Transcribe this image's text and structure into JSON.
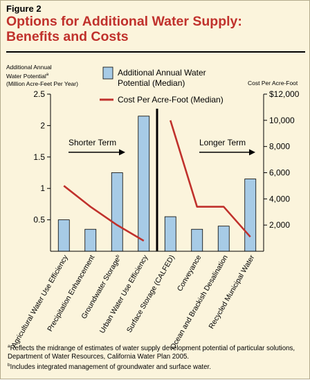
{
  "figure_label": "Figure 2",
  "title_line1": "Options for Additional Water Supply:",
  "title_line2": "Benefits and Costs",
  "footnotes": [
    {
      "mark": "a",
      "text": "Reflects the midrange of estimates of water supply development potential of particular solutions, Department of Water Resources, California Water Plan 2005."
    },
    {
      "mark": "b",
      "text": "Includes integrated management of groundwater and surface water."
    }
  ],
  "chart_data": {
    "type": "bar",
    "categories": [
      "Agricultural Water Use Efficiency",
      "Precipitation Enhancement",
      "Groundwater Storage",
      "Urban Water Use Efficiency",
      "Surface Storage (CALFED)",
      "Conveyance",
      "Ocean and Brackish Desalination",
      "Recycled Municipal Water"
    ],
    "category_marks": [
      "",
      "",
      "b",
      "",
      "",
      "",
      "",
      ""
    ],
    "ylabel_left_lines": [
      "Additional Annual",
      "Water Potential",
      "(Million Acre-Feet Per Year)"
    ],
    "ylabel_left_mark": "a",
    "ylabel_right": "Cost Per Acre-Foot",
    "ylim_left": [
      0,
      2.5
    ],
    "yticks_left": [
      "0.5",
      "1",
      "1.5",
      "2",
      "2.5"
    ],
    "ylim_right": [
      0,
      12000
    ],
    "yticks_right": [
      "2,000",
      "4,000",
      "6,000",
      "8,000",
      "10,000",
      "$12,000"
    ],
    "series": [
      {
        "name": "Additional Annual Water Potential (Median)",
        "type": "bar",
        "axis": "left",
        "color": "#a7cbe6",
        "values": [
          0.5,
          0.35,
          1.25,
          2.15,
          0.55,
          0.35,
          0.4,
          1.15
        ]
      },
      {
        "name": "Cost Per Acre-Foot (Median)",
        "type": "line",
        "axis": "right",
        "color": "#c0312c",
        "segments": [
          {
            "categories": [
              0,
              1,
              2,
              3
            ],
            "values": [
              5000,
              3400,
              2000,
              800
            ]
          },
          {
            "categories": [
              4,
              5,
              6,
              7
            ],
            "values": [
              10000,
              3400,
              3400,
              1100
            ]
          }
        ]
      }
    ],
    "legend_lines": [
      [
        "Additional Annual Water",
        "Potential (Median)"
      ],
      [
        "Cost Per Acre-Foot (Median)"
      ]
    ],
    "legend_position": "top-center",
    "divider_after_category": 3,
    "annotations": [
      {
        "text": "Shorter Term",
        "group": "left"
      },
      {
        "text": "Longer Term",
        "group": "right"
      }
    ],
    "grid": false
  }
}
